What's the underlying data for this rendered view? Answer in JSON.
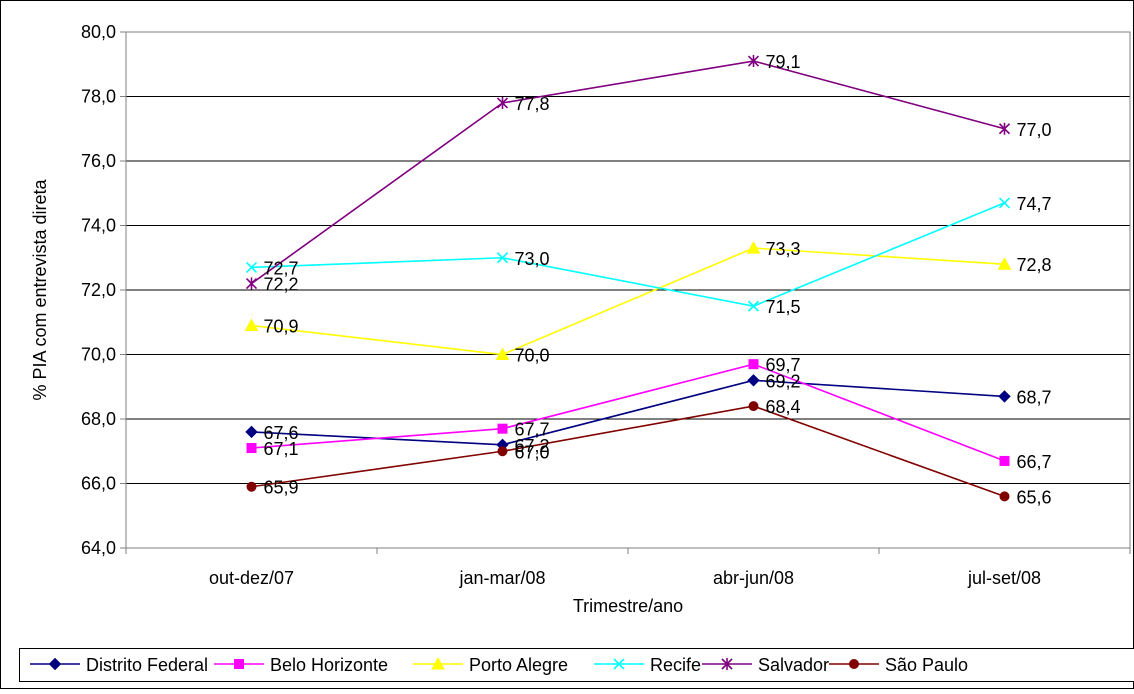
{
  "chart_data": {
    "type": "line",
    "title": "",
    "xlabel": "Trimestre/ano",
    "ylabel": "% PIA com entrevista direta",
    "categories": [
      "out-dez/07",
      "jan-mar/08",
      "abr-jun/08",
      "jul-set/08"
    ],
    "ylim": [
      64,
      80
    ],
    "ytick_step": 2,
    "yticks": [
      "64,0",
      "66,0",
      "68,0",
      "70,0",
      "72,0",
      "74,0",
      "76,0",
      "78,0",
      "80,0"
    ],
    "grid": "horizontal",
    "legend_position": "bottom",
    "series": [
      {
        "name": "Distrito Federal",
        "color": "#000080",
        "marker": "diamond",
        "values": [
          67.6,
          67.2,
          69.2,
          68.7
        ],
        "labels": [
          "67,6",
          "67,2",
          "69,2",
          "68,7"
        ]
      },
      {
        "name": "Belo Horizonte",
        "color": "#FF00FF",
        "marker": "square",
        "values": [
          67.1,
          67.7,
          69.7,
          66.7
        ],
        "labels": [
          "67,1",
          "67,7",
          "69,7",
          "66,7"
        ]
      },
      {
        "name": "Porto Alegre",
        "color": "#FFFF00",
        "marker": "triangle",
        "values": [
          70.9,
          70.0,
          73.3,
          72.8
        ],
        "labels": [
          "70,9",
          "70,0",
          "73,3",
          "72,8"
        ]
      },
      {
        "name": "Recife",
        "color": "#00FFFF",
        "marker": "x",
        "values": [
          72.7,
          73.0,
          71.5,
          74.7
        ],
        "labels": [
          "72,7",
          "73,0",
          "71,5",
          "74,7"
        ]
      },
      {
        "name": "Salvador",
        "color": "#800080",
        "marker": "asterisk",
        "values": [
          72.2,
          77.8,
          79.1,
          77.0
        ],
        "labels": [
          "72,2",
          "77,8",
          "79,1",
          "77,0"
        ]
      },
      {
        "name": "São Paulo",
        "color": "#800000",
        "marker": "circle",
        "values": [
          65.9,
          67.0,
          68.4,
          65.6
        ],
        "labels": [
          "65,9",
          "67,0",
          "68,4",
          "65,6"
        ]
      }
    ]
  }
}
